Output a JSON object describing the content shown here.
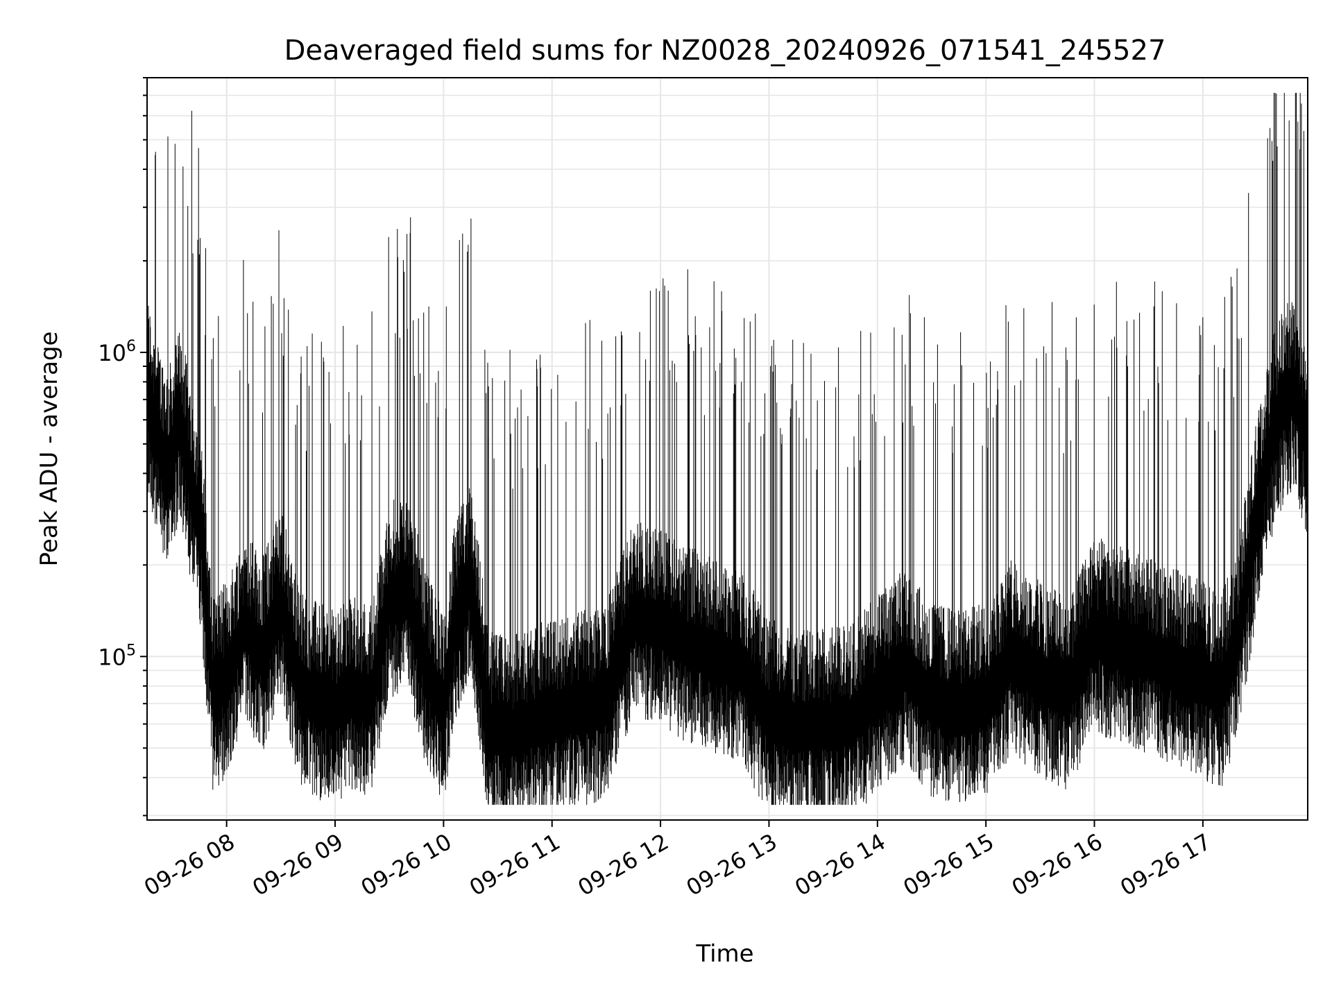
{
  "chart_data": {
    "type": "line",
    "title": "Deaveraged field sums for NZ0028_20240926_071541_245527",
    "xlabel": "Time",
    "ylabel": "Peak ADU - average",
    "y_scale": "log",
    "ylim": [
      29000,
      8000000
    ],
    "xlim": [
      "2024-09-26 07:16",
      "2024-09-26 17:58"
    ],
    "x_ticks": [
      {
        "label": "09-26 08",
        "t": "2024-09-26 08:00"
      },
      {
        "label": "09-26 09",
        "t": "2024-09-26 09:00"
      },
      {
        "label": "09-26 10",
        "t": "2024-09-26 10:00"
      },
      {
        "label": "09-26 11",
        "t": "2024-09-26 11:00"
      },
      {
        "label": "09-26 12",
        "t": "2024-09-26 12:00"
      },
      {
        "label": "09-26 13",
        "t": "2024-09-26 13:00"
      },
      {
        "label": "09-26 14",
        "t": "2024-09-26 14:00"
      },
      {
        "label": "09-26 15",
        "t": "2024-09-26 15:00"
      },
      {
        "label": "09-26 16",
        "t": "2024-09-26 16:00"
      },
      {
        "label": "09-26 17",
        "t": "2024-09-26 17:00"
      }
    ],
    "y_ticks": [
      {
        "base": "10",
        "exp": "5",
        "value": 100000
      },
      {
        "base": "10",
        "exp": "6",
        "value": 1000000
      }
    ],
    "grid": true,
    "series": [
      {
        "color": "#000000",
        "x": [
          "2024-09-26 07:16",
          "2024-09-26 07:22",
          "2024-09-26 07:28",
          "2024-09-26 07:34",
          "2024-09-26 07:40",
          "2024-09-26 07:46",
          "2024-09-26 07:52",
          "2024-09-26 08:00",
          "2024-09-26 08:10",
          "2024-09-26 08:20",
          "2024-09-26 08:30",
          "2024-09-26 08:40",
          "2024-09-26 08:50",
          "2024-09-26 09:00",
          "2024-09-26 09:10",
          "2024-09-26 09:20",
          "2024-09-26 09:30",
          "2024-09-26 09:40",
          "2024-09-26 09:50",
          "2024-09-26 10:00",
          "2024-09-26 10:06",
          "2024-09-26 10:15",
          "2024-09-26 10:25",
          "2024-09-26 10:35",
          "2024-09-26 10:45",
          "2024-09-26 11:00",
          "2024-09-26 11:15",
          "2024-09-26 11:30",
          "2024-09-26 11:45",
          "2024-09-26 12:00",
          "2024-09-26 12:15",
          "2024-09-26 12:30",
          "2024-09-26 12:45",
          "2024-09-26 13:00",
          "2024-09-26 13:15",
          "2024-09-26 13:30",
          "2024-09-26 13:45",
          "2024-09-26 14:00",
          "2024-09-26 14:15",
          "2024-09-26 14:30",
          "2024-09-26 14:45",
          "2024-09-26 15:00",
          "2024-09-26 15:15",
          "2024-09-26 15:30",
          "2024-09-26 15:45",
          "2024-09-26 16:00",
          "2024-09-26 16:15",
          "2024-09-26 16:30",
          "2024-09-26 16:45",
          "2024-09-26 17:00",
          "2024-09-26 17:10",
          "2024-09-26 17:20",
          "2024-09-26 17:30",
          "2024-09-26 17:40",
          "2024-09-26 17:50",
          "2024-09-26 17:58"
        ],
        "y": [
          900000,
          600000,
          500000,
          700000,
          450000,
          300000,
          90000,
          100000,
          150000,
          120000,
          180000,
          95000,
          85000,
          80000,
          90000,
          85000,
          180000,
          200000,
          110000,
          80000,
          150000,
          220000,
          70000,
          65000,
          70000,
          75000,
          80000,
          85000,
          160000,
          150000,
          130000,
          120000,
          110000,
          75000,
          70000,
          70000,
          72000,
          90000,
          110000,
          85000,
          80000,
          85000,
          120000,
          100000,
          90000,
          140000,
          130000,
          120000,
          110000,
          100000,
          90000,
          140000,
          350000,
          700000,
          900000,
          600000
        ]
      }
    ]
  }
}
